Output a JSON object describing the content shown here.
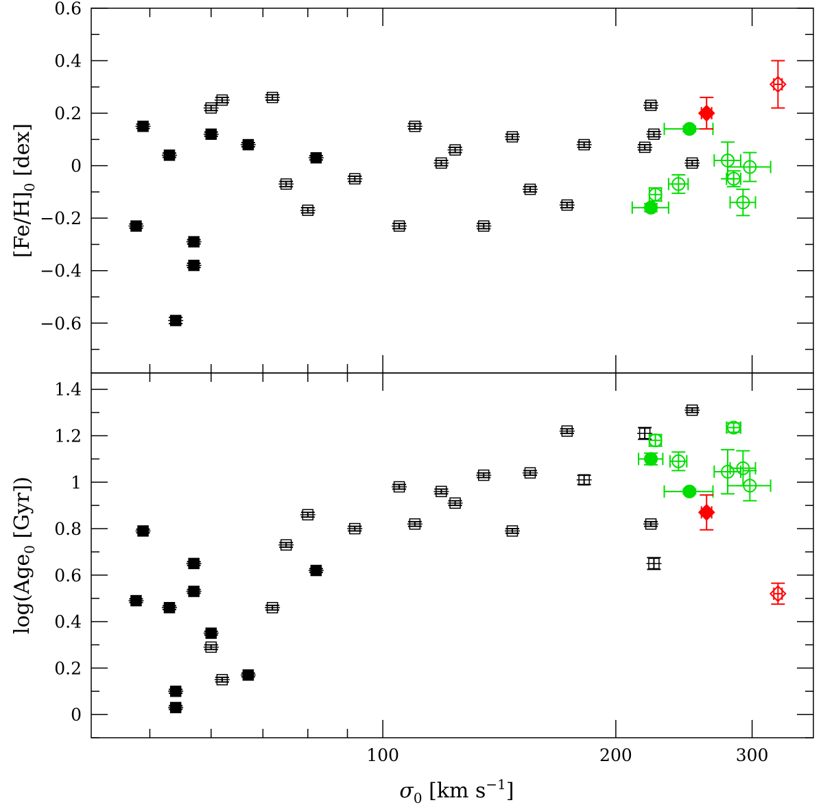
{
  "chart_data": [
    {
      "type": "scatter",
      "panel": "top",
      "ylabel": "[Fe/H]0 [dex]",
      "ylabel_parts": {
        "main": "[Fe/H]",
        "sub": "0",
        "unit": " [dex]"
      },
      "xscale": "log",
      "xlim": [
        42,
        360
      ],
      "ylim": [
        -0.79,
        0.6
      ],
      "yticks": [
        -0.6,
        -0.4,
        -0.2,
        0,
        0.2,
        0.4,
        0.6
      ],
      "ytick_labels": [
        "−0.6",
        "−0.4",
        "−0.2",
        "0",
        "0.2",
        "0.4",
        "0.6"
      ],
      "series": [
        {
          "name": "filled black squares",
          "marker": "square",
          "filled": true,
          "color": "#000000",
          "points": [
            [
              49,
              0.15,
              0.008
            ],
            [
              48,
              -0.23,
              0.008
            ],
            [
              53,
              0.04,
              0.008
            ],
            [
              54,
              -0.59,
              0.012
            ],
            [
              57,
              -0.29,
              0.008
            ],
            [
              57,
              -0.38,
              0.008
            ],
            [
              60,
              0.12,
              0.008
            ],
            [
              67,
              0.08,
              0.008
            ],
            [
              82,
              0.03,
              0.008
            ]
          ]
        },
        {
          "name": "open black squares",
          "marker": "square",
          "filled": false,
          "color": "#000000",
          "points": [
            [
              60,
              0.22,
              0.01
            ],
            [
              62,
              0.25,
              0.01
            ],
            [
              72,
              0.26,
              0.01
            ],
            [
              75,
              -0.07,
              0.01
            ],
            [
              80,
              -0.17,
              0.01
            ],
            [
              92,
              -0.05,
              0.01
            ],
            [
              105,
              -0.23,
              0.01
            ],
            [
              110,
              0.15,
              0.01
            ],
            [
              119,
              0.01,
              0.01
            ],
            [
              124,
              0.06,
              0.01
            ],
            [
              135,
              -0.23,
              0.01
            ],
            [
              147,
              0.11,
              0.01
            ],
            [
              155,
              -0.09,
              0.01
            ],
            [
              173,
              -0.15,
              0.01
            ],
            [
              182,
              0.08,
              0.01
            ],
            [
              218,
              0.07,
              0.01
            ],
            [
              222,
              0.23,
              0.01
            ],
            [
              224,
              0.12,
              0.01
            ],
            [
              251,
              0.01,
              0.01
            ]
          ]
        },
        {
          "name": "filled green circles",
          "marker": "circle",
          "filled": true,
          "color": "#00dd00",
          "points": [
            {
              "x": 222,
              "y": -0.16,
              "xerr": 12,
              "yerr": 0.015
            },
            {
              "x": 249,
              "y": 0.14,
              "xerr": 18,
              "yerr": 0.01
            }
          ]
        },
        {
          "name": "open green circles",
          "marker": "circle",
          "filled": false,
          "color": "#00dd00",
          "points": [
            {
              "x": 225,
              "y": -0.11,
              "xerr": 4,
              "yerr": 0.025
            },
            {
              "x": 241,
              "y": -0.07,
              "xerr": 7,
              "yerr": 0.035
            },
            {
              "x": 279,
              "y": 0.02,
              "xerr": 11,
              "yerr": 0.07
            },
            {
              "x": 284,
              "y": -0.05,
              "xerr": 6,
              "yerr": 0.03
            },
            {
              "x": 292,
              "y": -0.14,
              "xerr": 11,
              "yerr": 0.05
            },
            {
              "x": 298,
              "y": -0.005,
              "xerr": 19,
              "yerr": 0.055
            }
          ]
        },
        {
          "name": "filled red diamond",
          "marker": "diamond",
          "filled": true,
          "color": "#ff0000",
          "points": [
            {
              "x": 262,
              "y": 0.2,
              "xerr": 4,
              "yerr": 0.06
            }
          ]
        },
        {
          "name": "open red diamond",
          "marker": "diamond",
          "filled": false,
          "color": "#ff0000",
          "points": [
            {
              "x": 324,
              "y": 0.31,
              "xerr": 4,
              "yerr": 0.09
            }
          ]
        }
      ]
    },
    {
      "type": "scatter",
      "panel": "bottom",
      "ylabel": "log(Age0 [Gyr])",
      "ylabel_parts": {
        "main": "log(Age",
        "sub": "0",
        "unit": " [Gyr])"
      },
      "xlabel": "σ0 [km s⁻¹]",
      "xlabel_parts": {
        "main": "σ",
        "sub": "0",
        "unit": " [km s",
        "sup": "−1",
        "close": "]"
      },
      "xscale": "log",
      "xlim": [
        42,
        360
      ],
      "ylim": [
        -0.1,
        1.47
      ],
      "xticks": [
        100,
        200,
        300
      ],
      "xtick_labels": [
        "100",
        "200",
        "300"
      ],
      "yticks": [
        0,
        0.2,
        0.4,
        0.6,
        0.8,
        1,
        1.2,
        1.4
      ],
      "ytick_labels": [
        "0",
        "0.2",
        "0.4",
        "0.6",
        "0.8",
        "1",
        "1.2",
        "1.4"
      ],
      "series": [
        {
          "name": "filled black squares",
          "marker": "square",
          "filled": true,
          "color": "#000000",
          "points": [
            [
              49,
              0.79,
              0.008
            ],
            [
              48,
              0.49,
              0.008
            ],
            [
              53,
              0.46,
              0.008
            ],
            [
              54,
              0.1,
              0.008
            ],
            [
              54,
              0.03,
              0.008
            ],
            [
              57,
              0.65,
              0.008
            ],
            [
              57,
              0.53,
              0.008
            ],
            [
              60,
              0.35,
              0.008
            ],
            [
              67,
              0.17,
              0.008
            ],
            [
              82,
              0.62,
              0.008
            ]
          ]
        },
        {
          "name": "open black squares",
          "marker": "square",
          "filled": false,
          "color": "#000000",
          "points": [
            [
              60,
              0.29,
              0.01
            ],
            [
              62,
              0.15,
              0.01
            ],
            [
              72,
              0.46,
              0.01
            ],
            [
              75,
              0.73,
              0.01
            ],
            [
              80,
              0.86,
              0.01
            ],
            [
              92,
              0.8,
              0.01
            ],
            [
              105,
              0.98,
              0.01
            ],
            [
              110,
              0.82,
              0.01
            ],
            [
              119,
              0.96,
              0.01
            ],
            [
              124,
              0.91,
              0.01
            ],
            [
              135,
              1.03,
              0.01
            ],
            [
              147,
              0.79,
              0.01
            ],
            [
              155,
              1.04,
              0.01
            ],
            [
              173,
              1.22,
              0.01
            ],
            [
              182,
              1.01,
              0.02
            ],
            [
              218,
              1.21,
              0.025
            ],
            [
              222,
              0.82,
              0.01
            ],
            [
              224,
              0.65,
              0.025
            ],
            [
              251,
              1.31,
              0.01
            ]
          ]
        },
        {
          "name": "filled green circles",
          "marker": "circle",
          "filled": true,
          "color": "#00dd00",
          "points": [
            {
              "x": 222,
              "y": 1.1,
              "xerr": 8,
              "yerr": 0.025
            },
            {
              "x": 249,
              "y": 0.96,
              "xerr": 18,
              "yerr": 0.01
            }
          ]
        },
        {
          "name": "open green circles",
          "marker": "circle",
          "filled": false,
          "color": "#00dd00",
          "points": [
            {
              "x": 225,
              "y": 1.18,
              "xerr": 4,
              "yerr": 0.025
            },
            {
              "x": 241,
              "y": 1.09,
              "xerr": 6,
              "yerr": 0.04
            },
            {
              "x": 279,
              "y": 1.045,
              "xerr": 11,
              "yerr": 0.095
            },
            {
              "x": 284,
              "y": 1.235,
              "xerr": 6,
              "yerr": 0.02
            },
            {
              "x": 292,
              "y": 1.06,
              "xerr": 11,
              "yerr": 0.075
            },
            {
              "x": 298,
              "y": 0.985,
              "xerr": 19,
              "yerr": 0.065
            }
          ]
        },
        {
          "name": "filled red diamond",
          "marker": "diamond",
          "filled": true,
          "color": "#ff0000",
          "points": [
            {
              "x": 262,
              "y": 0.87,
              "xerr": 4,
              "yerr": 0.075
            }
          ]
        },
        {
          "name": "open red diamond",
          "marker": "diamond",
          "filled": false,
          "color": "#ff0000",
          "points": [
            {
              "x": 324,
              "y": 0.52,
              "xerr": 4,
              "yerr": 0.045
            }
          ]
        }
      ]
    }
  ]
}
